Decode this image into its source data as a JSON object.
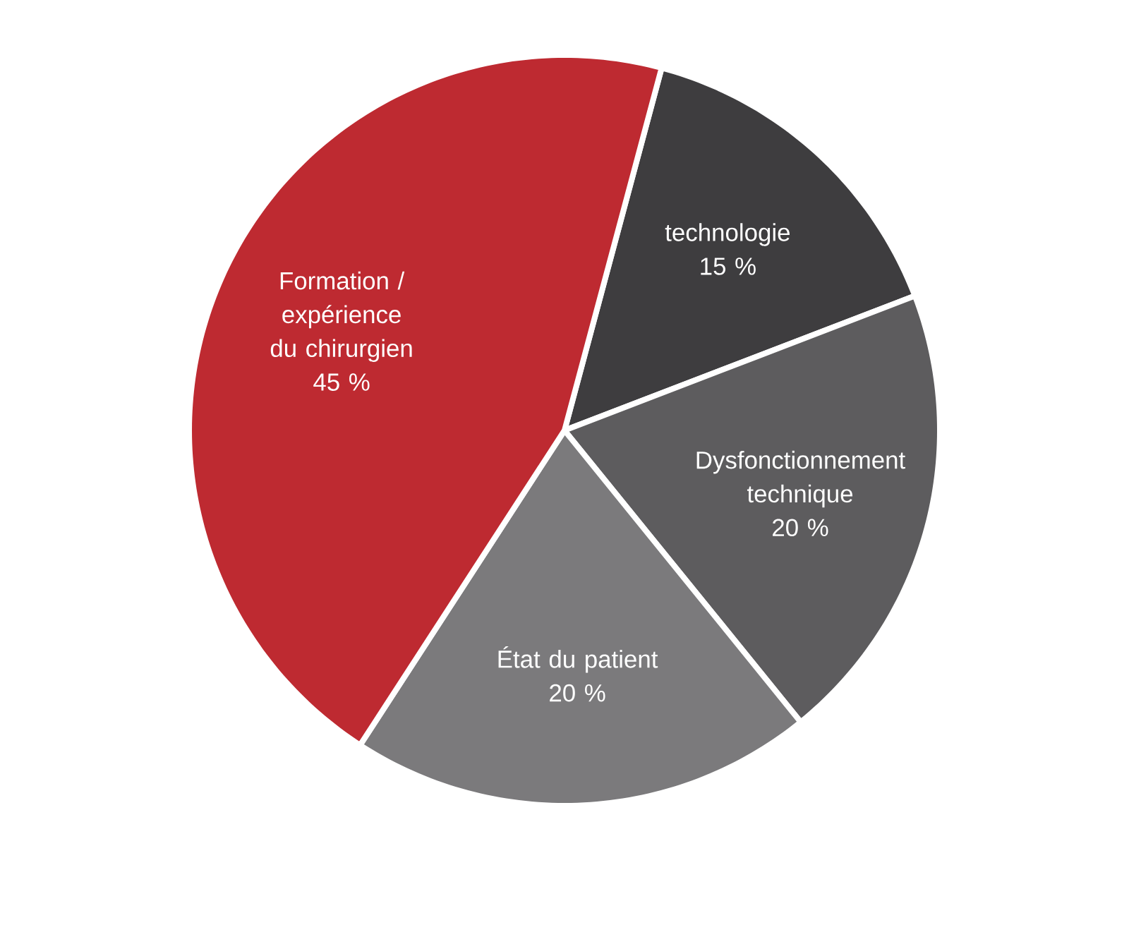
{
  "chart_data": {
    "type": "pie",
    "categories": [
      "technologie",
      "Dysfonctionnement technique",
      "État du patient",
      "Formation / expérience du chirurgien"
    ],
    "values": [
      15,
      20,
      20,
      45
    ],
    "value_labels": [
      "15 %",
      "20 %",
      "20 %",
      "45 %"
    ],
    "colors": [
      "#3e3d3f",
      "#5d5c5e",
      "#7b7a7c",
      "#be2a31"
    ]
  }
}
